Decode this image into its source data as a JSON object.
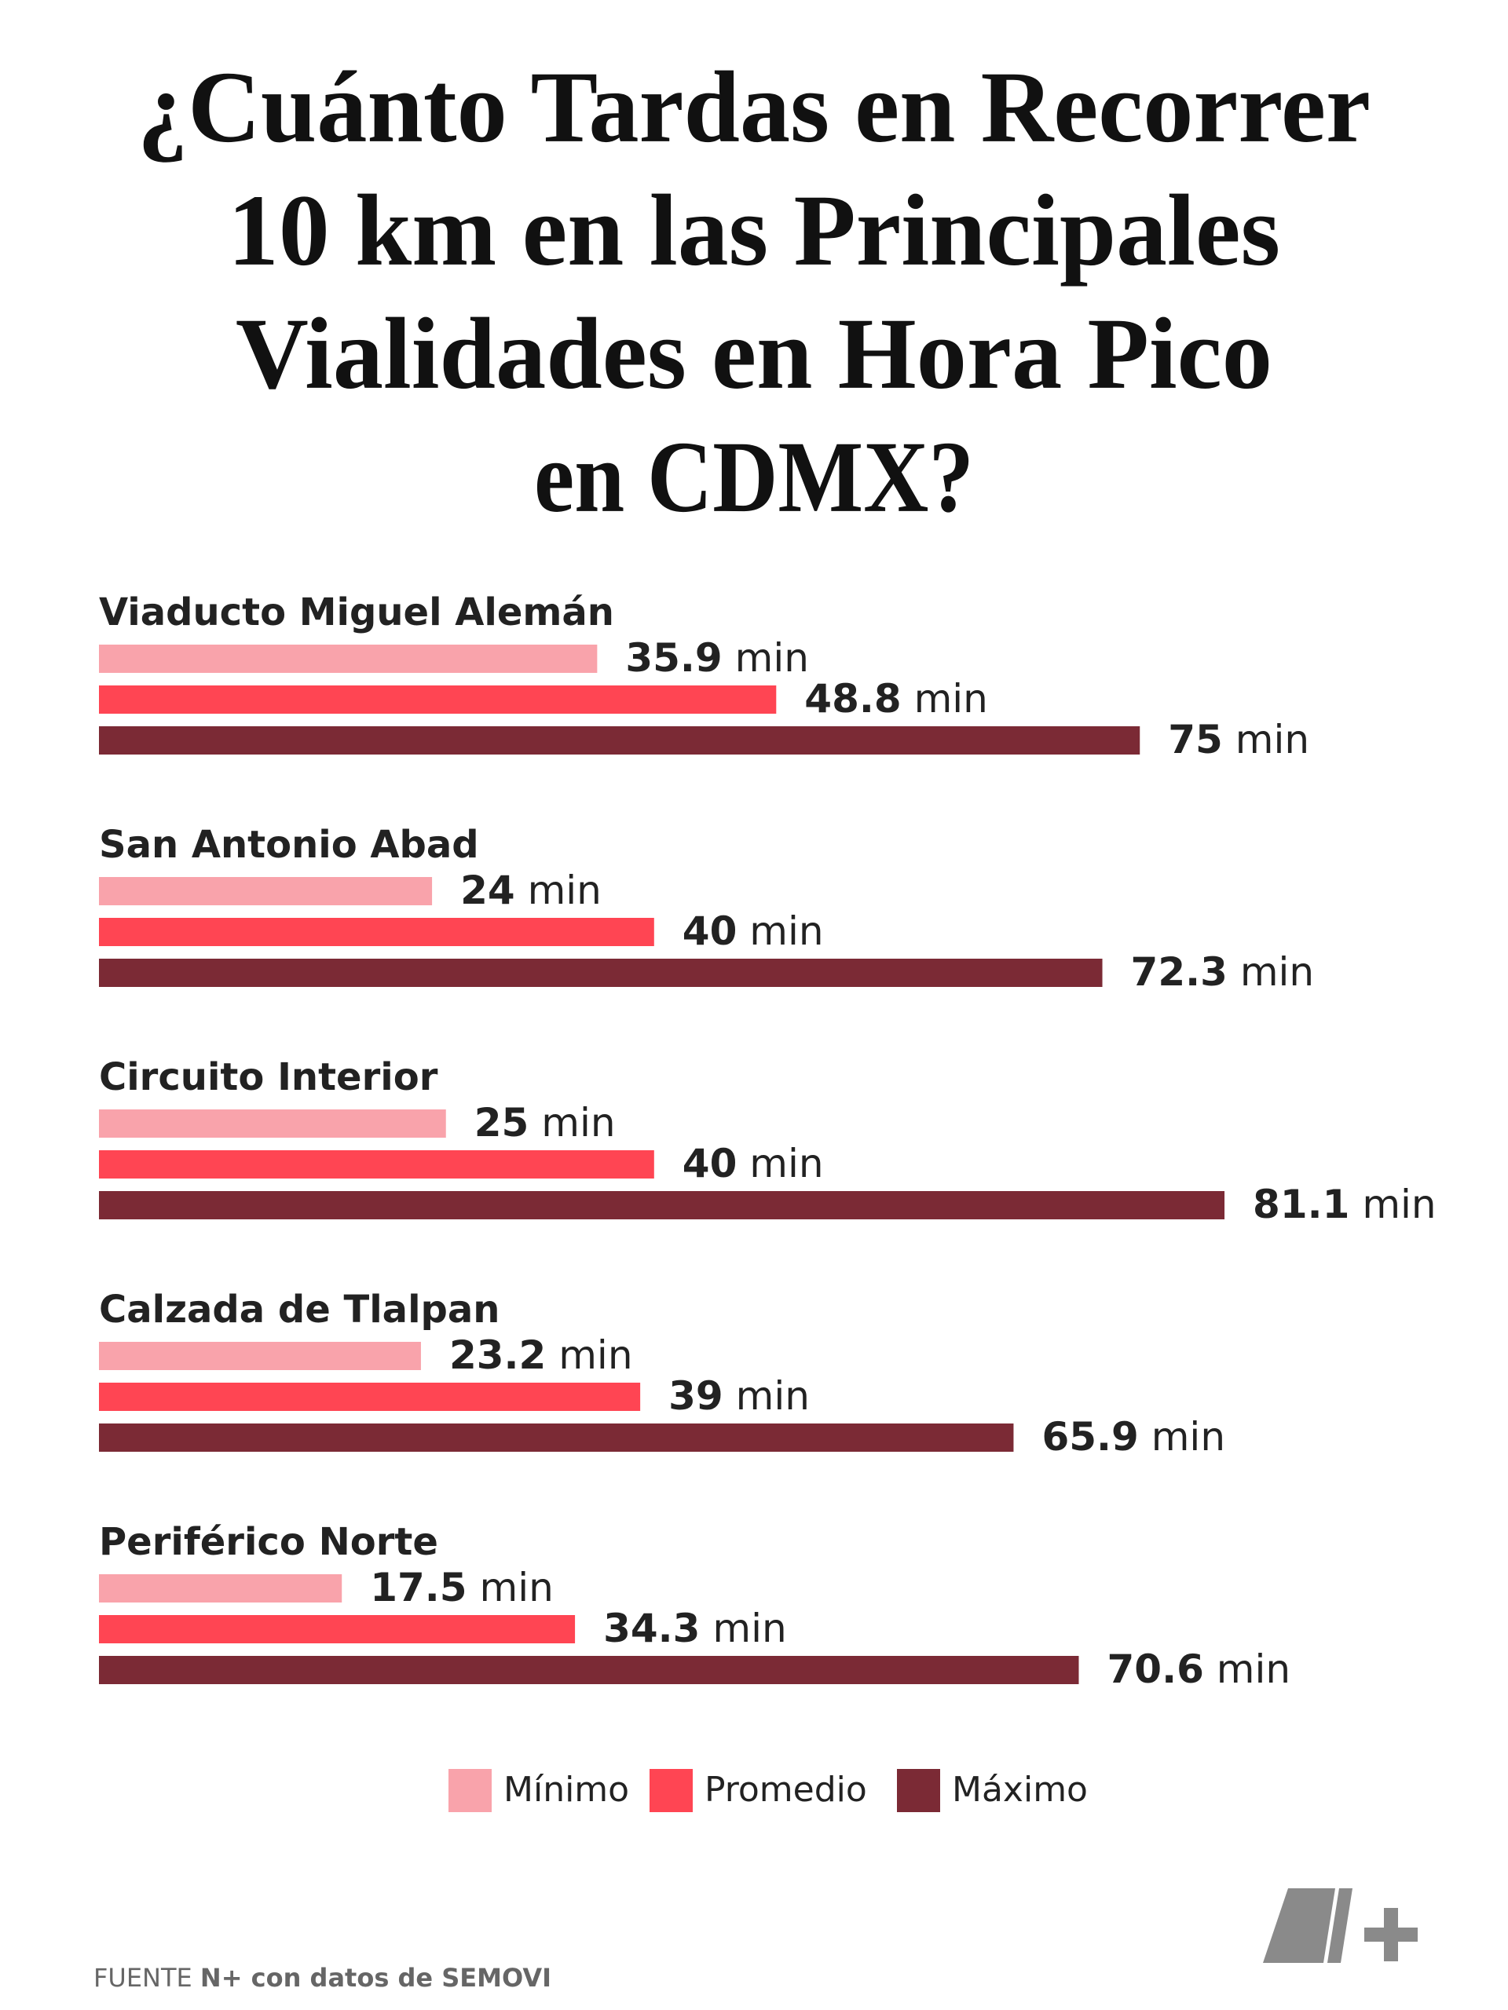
{
  "chart_data": {
    "type": "bar",
    "orientation": "horizontal",
    "title_lines": [
      "¿Cuánto Tardas en Recorrer",
      "10 km en las Principales",
      "Vialidades en Hora Pico",
      "en CDMX?"
    ],
    "categories": [
      "Viaducto Miguel Alemán",
      "San Antonio Abad",
      "Circuito Interior",
      "Calzada de Tlalpan",
      "Periférico Norte"
    ],
    "series": [
      {
        "name": "Mínimo",
        "color": "#f9a3ab",
        "values": [
          35.9,
          24,
          25,
          23.2,
          17.5
        ]
      },
      {
        "name": "Promedio",
        "color": "#ff4553",
        "values": [
          48.8,
          40,
          40,
          39,
          34.3
        ]
      },
      {
        "name": "Máximo",
        "color": "#7b2a35",
        "values": [
          75,
          72.3,
          81.1,
          65.9,
          70.6
        ]
      }
    ],
    "value_unit": "min",
    "legend": "bottom",
    "source_label": "FUENTE",
    "source_text": "N+ con datos de SEMOVI"
  }
}
